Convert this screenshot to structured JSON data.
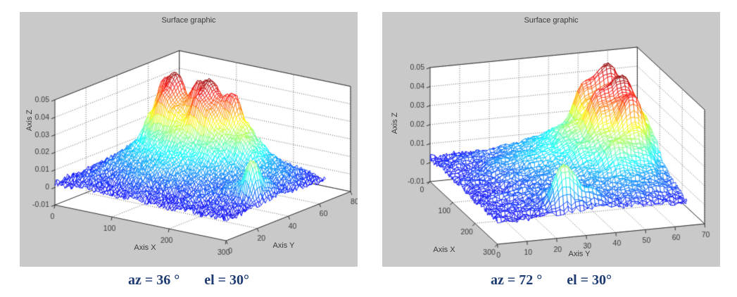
{
  "colors": {
    "panel_bg": "#c9c9c9",
    "wall": "#ffffff",
    "grid_line": "#5e5e5e",
    "axis_line": "#2f2f2f",
    "tick_text": "#3a3a3a",
    "title": "#3a3a3a",
    "caption": "#1d3b70"
  },
  "panels": [
    {
      "title": "Surface graphic",
      "xlabel": "Axis X",
      "ylabel": "Axis Y",
      "zlabel": "Axis Z",
      "view": {
        "az": 36,
        "el": 30
      },
      "caption": {
        "az": "az = 36 °",
        "el": "el = 30°"
      },
      "axes": {
        "xlim": [
          0,
          300
        ],
        "xticks": [
          0,
          100,
          200,
          300
        ],
        "ylim": [
          0,
          80
        ],
        "yticks": [
          0,
          20,
          40,
          60,
          80
        ],
        "zlim": [
          -0.01,
          0.05
        ],
        "zticks": [
          -0.01,
          0,
          0.01,
          0.02,
          0.03,
          0.04,
          0.05
        ],
        "ztick_labels": [
          "-0.01",
          "0",
          "0.01",
          "0.02",
          "0.03",
          "0.04",
          "0.05"
        ]
      }
    },
    {
      "title": "Surface graphic",
      "xlabel": "Axis X",
      "ylabel": "Axis Y",
      "zlabel": "Axis Z",
      "view": {
        "az": 72,
        "el": 30
      },
      "caption": {
        "az": "az = 72 °",
        "el": "el = 30°"
      },
      "axes": {
        "xlim": [
          0,
          300
        ],
        "xticks": [
          0,
          100,
          200,
          300
        ],
        "ylim": [
          0,
          70
        ],
        "yticks": [
          0,
          10,
          20,
          30,
          40,
          50,
          60,
          70
        ],
        "zlim": [
          -0.01,
          0.05
        ],
        "zticks": [
          -0.01,
          0,
          0.01,
          0.02,
          0.03,
          0.04,
          0.05
        ],
        "ztick_labels": [
          "-0.01",
          "0",
          "0.01",
          "0.02",
          "0.03",
          "0.04",
          "0.05"
        ]
      }
    }
  ],
  "chart_data": {
    "type": "surface-mesh",
    "title": "Surface graphic",
    "xlabel": "Axis X",
    "ylabel": "Axis Y",
    "zlabel": "Axis Z",
    "colormap": "jet",
    "views": [
      {
        "az": 36,
        "el": 30
      },
      {
        "az": 72,
        "el": 30
      }
    ],
    "x_range": [
      0,
      300
    ],
    "y_range": [
      0,
      64
    ],
    "z_range_approx": [
      -0.004,
      0.05
    ],
    "color_range": [
      -0.004,
      0.05
    ],
    "noise_amplitude": 0.002,
    "z_grid_scale": 0.001,
    "z_grid_note": "Estimated surface heights (units of z_grid_scale) on a 16x9 control grid; rows = y from 0 to 64, cols = x from 0 to 300",
    "z_grid": [
      [
        3,
        2,
        3,
        4,
        3,
        2,
        3,
        4,
        3,
        3,
        2,
        3,
        3,
        2,
        3,
        2
      ],
      [
        3,
        4,
        5,
        4,
        3,
        5,
        6,
        5,
        4,
        3,
        4,
        5,
        3,
        4,
        3,
        2
      ],
      [
        2,
        5,
        7,
        6,
        8,
        10,
        9,
        7,
        8,
        6,
        5,
        7,
        6,
        5,
        4,
        3
      ],
      [
        3,
        6,
        9,
        11,
        10,
        12,
        14,
        12,
        10,
        9,
        8,
        6,
        9,
        12,
        26,
        4
      ],
      [
        4,
        8,
        12,
        14,
        16,
        15,
        17,
        16,
        14,
        12,
        10,
        9,
        8,
        10,
        12,
        5
      ],
      [
        4,
        10,
        16,
        20,
        22,
        26,
        24,
        20,
        22,
        18,
        14,
        12,
        10,
        8,
        6,
        4
      ],
      [
        5,
        12,
        30,
        42,
        35,
        30,
        44,
        38,
        28,
        24,
        26,
        18,
        12,
        10,
        7,
        4
      ],
      [
        4,
        10,
        46,
        50,
        38,
        48,
        50,
        42,
        45,
        30,
        22,
        14,
        10,
        8,
        5,
        3
      ],
      [
        3,
        6,
        18,
        24,
        20,
        26,
        28,
        24,
        20,
        15,
        10,
        8,
        6,
        5,
        4,
        2
      ]
    ]
  }
}
